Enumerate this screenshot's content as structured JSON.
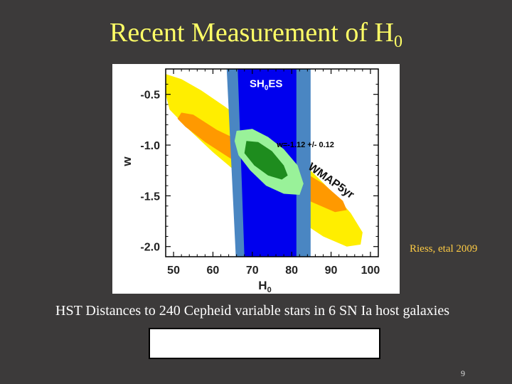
{
  "slide": {
    "title_main": "Recent Measurement of H",
    "title_sub": "0",
    "citation": "Riess, etal 2009",
    "caption": "HST Distances to 240 Cepheid variable stars in 6 SN Ia host galaxies",
    "page_number": "9"
  },
  "chart_data": {
    "type": "contour",
    "xlabel": "H",
    "xlabel_sub": "0",
    "ylabel": "w",
    "xlim": [
      48,
      102
    ],
    "ylim": [
      -2.1,
      -0.25
    ],
    "xticks": [
      {
        "value": 50,
        "label": "50"
      },
      {
        "value": 60,
        "label": "60"
      },
      {
        "value": 70,
        "label": "70"
      },
      {
        "value": 80,
        "label": "80"
      },
      {
        "value": 90,
        "label": "90"
      },
      {
        "value": 100,
        "label": "100"
      }
    ],
    "yticks": [
      {
        "value": -0.5,
        "label": "-0.5"
      },
      {
        "value": -1.0,
        "label": "-1.0"
      },
      {
        "value": -1.5,
        "label": "-1.5"
      },
      {
        "value": -2.0,
        "label": "-2.0"
      }
    ],
    "colors": {
      "wmap_outer": "#ffee00",
      "wmap_inner": "#ff9900",
      "shoes_outer": "#4a86c2",
      "shoes_inner": "#0000ee",
      "combined_outer": "#99f299",
      "combined_inner": "#1e8c1e"
    },
    "regions": [
      {
        "name": "WMAP5yr outer",
        "color_key": "wmap_outer",
        "points": [
          [
            48,
            -0.3
          ],
          [
            52,
            -0.35
          ],
          [
            57,
            -0.46
          ],
          [
            63,
            -0.62
          ],
          [
            70,
            -0.82
          ],
          [
            77,
            -1.02
          ],
          [
            84,
            -1.22
          ],
          [
            90,
            -1.45
          ],
          [
            95,
            -1.67
          ],
          [
            98,
            -1.86
          ],
          [
            97.5,
            -1.98
          ],
          [
            94,
            -2.0
          ],
          [
            88,
            -1.9
          ],
          [
            81,
            -1.72
          ],
          [
            74,
            -1.52
          ],
          [
            67,
            -1.3
          ],
          [
            60,
            -1.07
          ],
          [
            54,
            -0.85
          ],
          [
            49,
            -0.65
          ],
          [
            48,
            -0.5
          ]
        ]
      },
      {
        "name": "WMAP5yr inner",
        "color_key": "wmap_inner",
        "points": [
          [
            52,
            -0.68
          ],
          [
            55,
            -0.7
          ],
          [
            61,
            -0.85
          ],
          [
            68,
            -0.98
          ],
          [
            75,
            -1.1
          ],
          [
            82,
            -1.24
          ],
          [
            88,
            -1.38
          ],
          [
            93,
            -1.55
          ],
          [
            94,
            -1.64
          ],
          [
            91,
            -1.66
          ],
          [
            85,
            -1.56
          ],
          [
            78,
            -1.42
          ],
          [
            71,
            -1.28
          ],
          [
            64,
            -1.12
          ],
          [
            58,
            -0.97
          ],
          [
            53,
            -0.82
          ],
          [
            51,
            -0.74
          ]
        ]
      },
      {
        "name": "SH0ES outer",
        "color_key": "shoes_outer",
        "points": [
          [
            63.5,
            -0.25
          ],
          [
            84.8,
            -0.25
          ],
          [
            84.8,
            -2.1
          ],
          [
            65.8,
            -2.1
          ]
        ]
      },
      {
        "name": "SH0ES inner",
        "color_key": "shoes_inner",
        "points": [
          [
            66.3,
            -0.25
          ],
          [
            81.2,
            -0.25
          ],
          [
            81.2,
            -2.1
          ],
          [
            68.0,
            -2.1
          ]
        ]
      },
      {
        "name": "Combined outer",
        "color_key": "combined_outer",
        "points": [
          [
            66,
            -0.86
          ],
          [
            70,
            -0.84
          ],
          [
            74,
            -0.92
          ],
          [
            78,
            -1.04
          ],
          [
            81.5,
            -1.2
          ],
          [
            83,
            -1.38
          ],
          [
            82,
            -1.49
          ],
          [
            78,
            -1.48
          ],
          [
            73.5,
            -1.4
          ],
          [
            69.5,
            -1.25
          ],
          [
            66.5,
            -1.1
          ],
          [
            65.5,
            -0.96
          ]
        ]
      },
      {
        "name": "Combined inner",
        "color_key": "combined_inner",
        "points": [
          [
            68.5,
            -0.96
          ],
          [
            71.5,
            -0.97
          ],
          [
            75,
            -1.06
          ],
          [
            78,
            -1.2
          ],
          [
            79,
            -1.3
          ],
          [
            77.5,
            -1.34
          ],
          [
            74,
            -1.3
          ],
          [
            70.5,
            -1.2
          ],
          [
            68,
            -1.08
          ]
        ]
      }
    ],
    "annotations": [
      {
        "text": "SH",
        "sub": "0",
        "tail": "ES",
        "x": 73.5,
        "y": -0.43,
        "color": "#ffffff",
        "rotate": 0,
        "size": 15
      },
      {
        "text": "w=-1.12 +/- 0.12",
        "x": 83.5,
        "y": -1.02,
        "color": "#000000",
        "rotate": 0,
        "size": 11
      },
      {
        "text": "WMAP5yr",
        "x": 89.5,
        "y": -1.38,
        "color": "#111111",
        "rotate": 35,
        "size": 16
      }
    ]
  }
}
